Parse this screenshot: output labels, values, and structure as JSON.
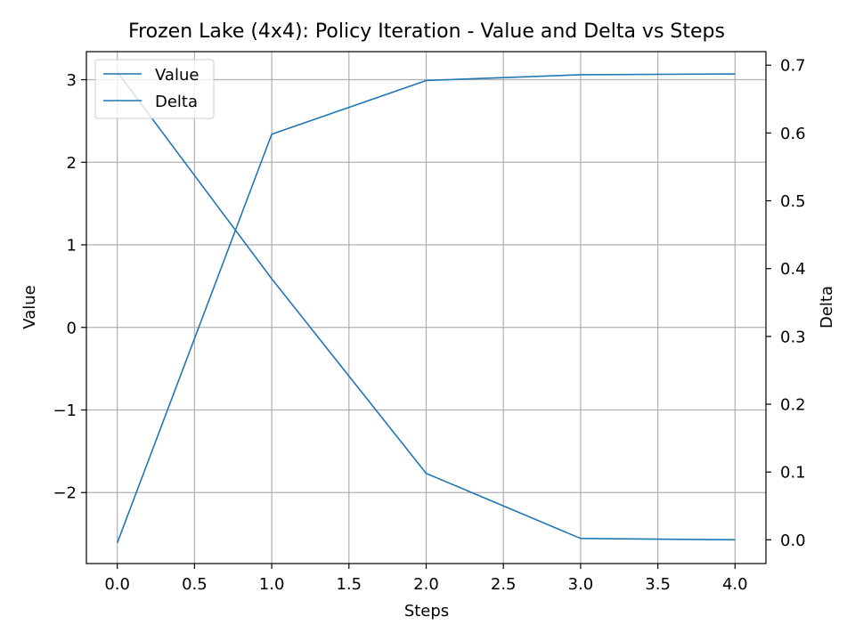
{
  "chart_data": {
    "type": "line",
    "title": "Frozen Lake (4x4): Policy Iteration - Value and Delta vs Steps",
    "xlabel": "Steps",
    "ylabel": "Value",
    "y2label": "Delta",
    "xlim": [
      -0.2,
      4.2
    ],
    "ylim": [
      -2.86,
      3.34
    ],
    "y2lim": [
      -0.035,
      0.72
    ],
    "xticks": [
      0.0,
      0.5,
      1.0,
      1.5,
      2.0,
      2.5,
      3.0,
      3.5,
      4.0
    ],
    "xtick_labels": [
      "0.0",
      "0.5",
      "1.0",
      "1.5",
      "2.0",
      "2.5",
      "3.0",
      "3.5",
      "4.0"
    ],
    "yticks": [
      -2,
      -1,
      0,
      1,
      2,
      3
    ],
    "ytick_labels": [
      "−2",
      "−1",
      "0",
      "1",
      "2",
      "3"
    ],
    "y2ticks": [
      0.0,
      0.1,
      0.2,
      0.3,
      0.4,
      0.5,
      0.6,
      0.7
    ],
    "y2tick_labels": [
      "0.0",
      "0.1",
      "0.2",
      "0.3",
      "0.4",
      "0.5",
      "0.6",
      "0.7"
    ],
    "grid": true,
    "legend_position": "top-left",
    "series": [
      {
        "name": "Value",
        "axis": "left",
        "x": [
          0,
          1,
          2,
          3,
          4
        ],
        "values": [
          -2.61,
          2.34,
          2.99,
          3.06,
          3.07
        ],
        "color": "#1f77b4"
      },
      {
        "name": "Delta",
        "axis": "right",
        "x": [
          0,
          1,
          2,
          3,
          4
        ],
        "values": [
          0.69,
          0.385,
          0.098,
          0.002,
          0.0
        ],
        "color": "#1f77b4"
      }
    ]
  }
}
